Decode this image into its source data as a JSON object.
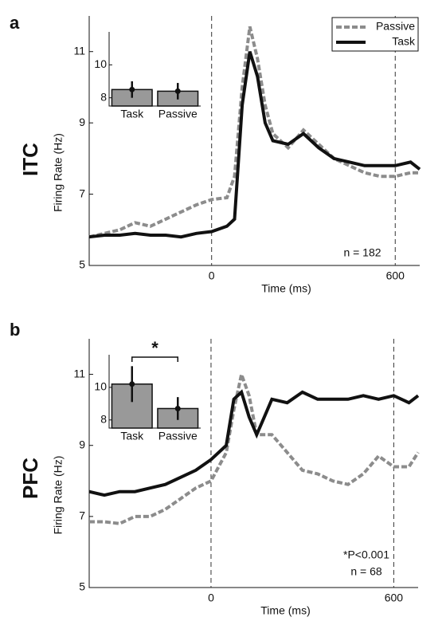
{
  "chart_data": [
    {
      "type": "line",
      "panel_label": "a",
      "region_label": "ITC",
      "xlabel": "Time (ms)",
      "ylabel": "Firing Rate (Hz)",
      "x": [
        -400,
        -350,
        -300,
        -250,
        -200,
        -150,
        -100,
        -50,
        0,
        50,
        75,
        100,
        125,
        150,
        175,
        200,
        250,
        300,
        350,
        400,
        450,
        500,
        550,
        600,
        650,
        680
      ],
      "series": [
        {
          "name": "Passive",
          "color": "#8c8c8c",
          "style": "dashed",
          "values": [
            5.8,
            5.9,
            6.0,
            6.2,
            6.1,
            6.3,
            6.5,
            6.7,
            6.85,
            6.9,
            7.5,
            10.0,
            11.7,
            10.8,
            9.5,
            8.7,
            8.3,
            8.8,
            8.4,
            8.0,
            7.8,
            7.6,
            7.5,
            7.5,
            7.6,
            7.6
          ]
        },
        {
          "name": "Task",
          "color": "#111111",
          "style": "solid",
          "values": [
            5.8,
            5.85,
            5.85,
            5.9,
            5.85,
            5.85,
            5.8,
            5.9,
            5.95,
            6.1,
            6.3,
            9.5,
            11.0,
            10.3,
            9.0,
            8.5,
            8.4,
            8.7,
            8.3,
            8.0,
            7.9,
            7.8,
            7.8,
            7.8,
            7.9,
            7.7
          ]
        }
      ],
      "xlim": [
        -400,
        680
      ],
      "ylim": [
        5,
        12
      ],
      "xticks": [
        0,
        600
      ],
      "yticks": [
        5,
        7,
        9,
        11
      ],
      "legend": "upper right",
      "annotations": [
        "n = 182"
      ],
      "inset": {
        "type": "bar",
        "categories": [
          "Task",
          "Passive"
        ],
        "values": [
          8.5,
          8.4
        ],
        "errors": [
          0.5,
          0.5
        ],
        "color": "#999999",
        "ylim": [
          7.5,
          12
        ],
        "yticks": [
          8,
          10
        ]
      }
    },
    {
      "type": "line",
      "panel_label": "b",
      "region_label": "PFC",
      "xlabel": "Time (ms)",
      "ylabel": "Firing Rate (Hz)",
      "x": [
        -400,
        -350,
        -300,
        -250,
        -200,
        -150,
        -100,
        -50,
        0,
        50,
        75,
        100,
        125,
        150,
        175,
        200,
        250,
        300,
        350,
        400,
        450,
        500,
        550,
        600,
        650,
        680
      ],
      "series": [
        {
          "name": "Passive",
          "color": "#8c8c8c",
          "style": "dashed",
          "values": [
            6.85,
            6.85,
            6.8,
            7.0,
            7.0,
            7.2,
            7.5,
            7.8,
            8.0,
            8.8,
            10.0,
            11.0,
            10.4,
            9.3,
            9.3,
            9.3,
            8.8,
            8.3,
            8.2,
            8.0,
            7.9,
            8.2,
            8.7,
            8.4,
            8.4,
            8.8
          ]
        },
        {
          "name": "Task",
          "color": "#111111",
          "style": "solid",
          "values": [
            7.7,
            7.6,
            7.7,
            7.7,
            7.8,
            7.9,
            8.1,
            8.3,
            8.6,
            9.0,
            10.3,
            10.5,
            9.8,
            9.3,
            9.8,
            10.3,
            10.2,
            10.5,
            10.3,
            10.3,
            10.3,
            10.4,
            10.3,
            10.4,
            10.2,
            10.4
          ]
        }
      ],
      "xlim": [
        -400,
        680
      ],
      "ylim": [
        5,
        12
      ],
      "xticks": [
        0,
        600
      ],
      "yticks": [
        5,
        7,
        9,
        11
      ],
      "annotations": [
        "*P<0.001",
        "n = 68"
      ],
      "inset": {
        "type": "bar",
        "categories": [
          "Task",
          "Passive"
        ],
        "values": [
          10.2,
          8.7
        ],
        "errors": [
          1.1,
          0.7
        ],
        "color": "#999999",
        "ylim": [
          7.5,
          12
        ],
        "yticks": [
          8,
          10
        ],
        "significance": "*"
      }
    }
  ]
}
